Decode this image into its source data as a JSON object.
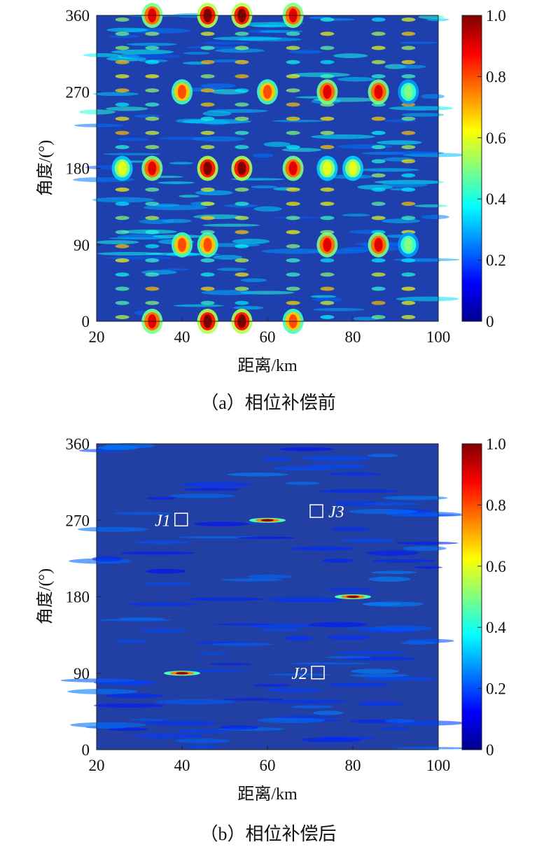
{
  "chart_data": [
    {
      "type": "heatmap",
      "caption": "（a）相位补偿前",
      "xlabel": "距离/km",
      "ylabel": "角度/(°)",
      "xlim": [
        20,
        100
      ],
      "ylim": [
        0,
        360
      ],
      "x_ticks": [
        "20",
        "40",
        "60",
        "80",
        "100"
      ],
      "y_ticks": [
        "0",
        "90",
        "180",
        "270",
        "360"
      ],
      "colorbar": {
        "range": [
          0,
          1.0
        ],
        "ticks": [
          "0",
          "0.2",
          "0.4",
          "0.6",
          "0.8",
          "1.0"
        ],
        "colormap": "jet"
      },
      "hotspot_columns_km": [
        26,
        33,
        46,
        54,
        66,
        74,
        86,
        93
      ],
      "peaks": [
        {
          "x": 26,
          "y": 180,
          "v": 0.6
        },
        {
          "x": 33,
          "y": 180,
          "v": 0.9
        },
        {
          "x": 46,
          "y": 180,
          "v": 1.0
        },
        {
          "x": 54,
          "y": 180,
          "v": 1.0
        },
        {
          "x": 66,
          "y": 180,
          "v": 0.9
        },
        {
          "x": 74,
          "y": 180,
          "v": 0.6
        },
        {
          "x": 80,
          "y": 180,
          "v": 0.6
        },
        {
          "x": 46,
          "y": 90,
          "v": 0.8
        },
        {
          "x": 40,
          "y": 90,
          "v": 0.8
        },
        {
          "x": 74,
          "y": 90,
          "v": 0.9
        },
        {
          "x": 86,
          "y": 90,
          "v": 0.9
        },
        {
          "x": 93,
          "y": 90,
          "v": 0.5
        },
        {
          "x": 40,
          "y": 270,
          "v": 0.8
        },
        {
          "x": 60,
          "y": 270,
          "v": 0.8
        },
        {
          "x": 74,
          "y": 270,
          "v": 0.9
        },
        {
          "x": 86,
          "y": 270,
          "v": 0.9
        },
        {
          "x": 93,
          "y": 270,
          "v": 0.5
        },
        {
          "x": 33,
          "y": 0,
          "v": 0.9
        },
        {
          "x": 46,
          "y": 0,
          "v": 1.0
        },
        {
          "x": 54,
          "y": 0,
          "v": 1.0
        },
        {
          "x": 66,
          "y": 0,
          "v": 0.8
        },
        {
          "x": 33,
          "y": 360,
          "v": 0.9
        },
        {
          "x": 46,
          "y": 360,
          "v": 1.0
        },
        {
          "x": 54,
          "y": 360,
          "v": 1.0
        },
        {
          "x": 66,
          "y": 360,
          "v": 0.9
        }
      ]
    },
    {
      "type": "heatmap",
      "caption": "（b）相位补偿后",
      "xlabel": "距离/km",
      "ylabel": "角度/(°)",
      "xlim": [
        20,
        100
      ],
      "ylim": [
        0,
        360
      ],
      "x_ticks": [
        "20",
        "40",
        "60",
        "80",
        "100"
      ],
      "y_ticks": [
        "0",
        "90",
        "180",
        "270",
        "360"
      ],
      "colorbar": {
        "range": [
          0,
          1.0
        ],
        "ticks": [
          "0",
          "0.2",
          "0.4",
          "0.6",
          "0.8",
          "1.0"
        ],
        "colormap": "jet"
      },
      "peaks": [
        {
          "x": 40,
          "y": 90,
          "v": 1.0
        },
        {
          "x": 60,
          "y": 270,
          "v": 1.0
        },
        {
          "x": 80,
          "y": 180,
          "v": 1.0
        }
      ],
      "annotations": [
        {
          "label": "J1",
          "x": 38,
          "y": 270,
          "box_side": "right"
        },
        {
          "label": "J2",
          "x": 70,
          "y": 90,
          "box_side": "right"
        },
        {
          "label": "J3",
          "x": 70,
          "y": 280,
          "box_side": "left"
        }
      ]
    }
  ]
}
